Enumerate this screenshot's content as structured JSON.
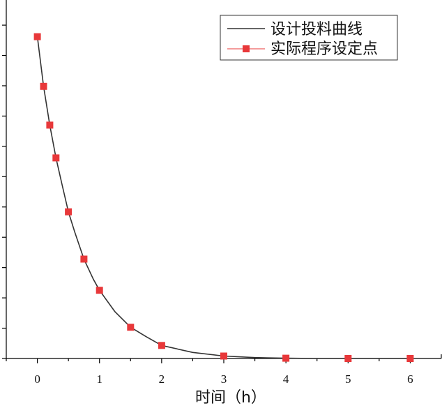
{
  "chart_data": {
    "type": "line",
    "xlabel": "时间（h）",
    "ylabel": "",
    "xlim": [
      -0.5,
      6.5
    ],
    "xticks": [
      0,
      1,
      2,
      3,
      4,
      5,
      6
    ],
    "x_tick_labels": [
      "0",
      "1",
      "2",
      "3",
      "4",
      "5",
      "6"
    ],
    "ylim": [
      0,
      11.6
    ],
    "yticks": [
      0,
      1,
      2,
      3,
      4,
      5,
      6,
      7,
      8,
      9,
      10,
      11,
      12
    ],
    "grid": false,
    "legend_position": "top-right",
    "series": [
      {
        "name": "设计投料曲线",
        "style": "line",
        "color": "#333333",
        "x": [
          0,
          0.1,
          0.2,
          0.3,
          0.4,
          0.5,
          0.6,
          0.75,
          0.9,
          1.0,
          1.25,
          1.5,
          1.75,
          2.0,
          2.5,
          3.0,
          3.5,
          4.0,
          4.5,
          5.0,
          5.5,
          6.0
        ],
        "values": [
          10.62,
          8.98,
          7.7,
          6.62,
          5.72,
          4.84,
          4.18,
          3.28,
          2.62,
          2.25,
          1.54,
          1.03,
          0.72,
          0.43,
          0.2,
          0.08,
          0.03,
          0.01,
          0.0,
          0.0,
          0.0,
          0.0
        ]
      },
      {
        "name": "实际程序设定点",
        "style": "marker",
        "marker": "square",
        "color": "#e8383a",
        "x": [
          0,
          0.1,
          0.2,
          0.3,
          0.5,
          0.75,
          1.0,
          1.5,
          2.0,
          3.0,
          4.0,
          5.0,
          6.0
        ],
        "values": [
          10.62,
          8.98,
          7.7,
          6.62,
          4.84,
          3.28,
          2.25,
          1.03,
          0.43,
          0.08,
          0.01,
          0.0,
          0.0
        ]
      }
    ]
  }
}
